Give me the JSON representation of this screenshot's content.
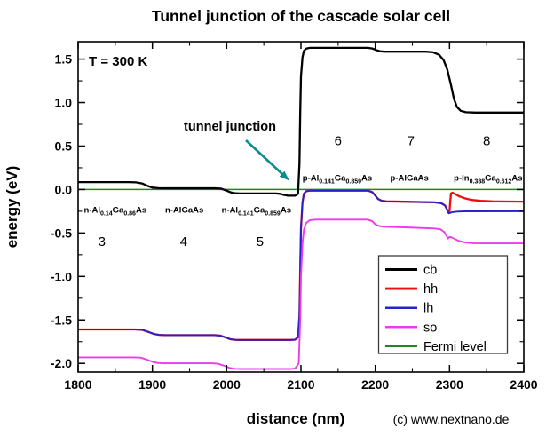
{
  "chart_data": {
    "type": "line",
    "title": "Tunnel junction of the cascade solar cell",
    "xlabel": "distance (nm)",
    "ylabel": "energy (eV)",
    "xlim": [
      1800,
      2400
    ],
    "ylim": [
      -2.1,
      1.7
    ],
    "x_tick_labels": [
      "1800",
      "1900",
      "2000",
      "2100",
      "2200",
      "2300",
      "2400"
    ],
    "x_minor_step": 50,
    "y_tick_labels": [
      "1.5",
      "1.0",
      "0.5",
      "0.0",
      "-0.5",
      "-1.0",
      "-1.5",
      "-2.0"
    ],
    "y_minor_step": 0.25,
    "grid": false,
    "legend_position": "lower right",
    "series": [
      {
        "name": "cb",
        "color": "#000000",
        "width": 2.3,
        "points": [
          [
            1800,
            0.085
          ],
          [
            1868,
            0.085
          ],
          [
            1878,
            0.082
          ],
          [
            1886,
            0.07
          ],
          [
            1894,
            0.04
          ],
          [
            1900,
            0.022
          ],
          [
            1908,
            0.016
          ],
          [
            1916,
            0.015
          ],
          [
            1984,
            0.015
          ],
          [
            1992,
            0.01
          ],
          [
            1999,
            -0.01
          ],
          [
            2006,
            -0.035
          ],
          [
            2012,
            -0.044
          ],
          [
            2018,
            -0.046
          ],
          [
            2066,
            -0.046
          ],
          [
            2072,
            -0.05
          ],
          [
            2077,
            -0.062
          ],
          [
            2082,
            -0.07
          ],
          [
            2092,
            -0.071
          ],
          [
            2096,
            -0.05
          ],
          [
            2098,
            0.3
          ],
          [
            2099,
            0.9
          ],
          [
            2100,
            1.3
          ],
          [
            2102,
            1.52
          ],
          [
            2104,
            1.595
          ],
          [
            2107,
            1.62
          ],
          [
            2112,
            1.63
          ],
          [
            2190,
            1.63
          ],
          [
            2196,
            1.622
          ],
          [
            2201,
            1.605
          ],
          [
            2207,
            1.59
          ],
          [
            2213,
            1.586
          ],
          [
            2268,
            1.586
          ],
          [
            2278,
            1.578
          ],
          [
            2286,
            1.55
          ],
          [
            2292,
            1.49
          ],
          [
            2297,
            1.38
          ],
          [
            2302,
            1.2
          ],
          [
            2306,
            1.04
          ],
          [
            2310,
            0.95
          ],
          [
            2315,
            0.905
          ],
          [
            2322,
            0.889
          ],
          [
            2335,
            0.885
          ],
          [
            2400,
            0.885
          ]
        ]
      },
      {
        "name": "hh",
        "color": "#ed0e0e",
        "width": 2.3,
        "points": [
          [
            1800,
            -1.61
          ],
          [
            1876,
            -1.61
          ],
          [
            1886,
            -1.614
          ],
          [
            1894,
            -1.636
          ],
          [
            1902,
            -1.662
          ],
          [
            1909,
            -1.672
          ],
          [
            1916,
            -1.675
          ],
          [
            1983,
            -1.675
          ],
          [
            1991,
            -1.68
          ],
          [
            1998,
            -1.7
          ],
          [
            2005,
            -1.722
          ],
          [
            2012,
            -1.729
          ],
          [
            2018,
            -1.73
          ],
          [
            2086,
            -1.73
          ],
          [
            2092,
            -1.727
          ],
          [
            2096,
            -1.7
          ],
          [
            2098,
            -1.45
          ],
          [
            2099,
            -0.9
          ],
          [
            2100,
            -0.45
          ],
          [
            2102,
            -0.15
          ],
          [
            2104,
            -0.05
          ],
          [
            2107,
            -0.02
          ],
          [
            2112,
            -0.013
          ],
          [
            2190,
            -0.013
          ],
          [
            2196,
            -0.03
          ],
          [
            2200,
            -0.07
          ],
          [
            2204,
            -0.11
          ],
          [
            2209,
            -0.131
          ],
          [
            2215,
            -0.137
          ],
          [
            2240,
            -0.141
          ],
          [
            2280,
            -0.148
          ],
          [
            2289,
            -0.158
          ],
          [
            2294,
            -0.185
          ],
          [
            2297,
            -0.235
          ],
          [
            2299,
            -0.273
          ],
          [
            2300,
            -0.255
          ],
          [
            2301,
            -0.13
          ],
          [
            2302,
            -0.045
          ],
          [
            2304,
            -0.037
          ],
          [
            2308,
            -0.055
          ],
          [
            2313,
            -0.078
          ],
          [
            2320,
            -0.1
          ],
          [
            2330,
            -0.12
          ],
          [
            2342,
            -0.131
          ],
          [
            2358,
            -0.137
          ],
          [
            2380,
            -0.139
          ],
          [
            2400,
            -0.14
          ]
        ]
      },
      {
        "name": "lh",
        "color": "#2424c8",
        "width": 1.9,
        "points": [
          [
            1800,
            -1.61
          ],
          [
            1876,
            -1.61
          ],
          [
            1886,
            -1.614
          ],
          [
            1894,
            -1.636
          ],
          [
            1902,
            -1.662
          ],
          [
            1909,
            -1.672
          ],
          [
            1916,
            -1.675
          ],
          [
            1983,
            -1.675
          ],
          [
            1991,
            -1.68
          ],
          [
            1998,
            -1.7
          ],
          [
            2005,
            -1.722
          ],
          [
            2012,
            -1.729
          ],
          [
            2018,
            -1.73
          ],
          [
            2086,
            -1.73
          ],
          [
            2092,
            -1.727
          ],
          [
            2096,
            -1.7
          ],
          [
            2098,
            -1.45
          ],
          [
            2099,
            -0.9
          ],
          [
            2100,
            -0.45
          ],
          [
            2102,
            -0.15
          ],
          [
            2104,
            -0.05
          ],
          [
            2107,
            -0.02
          ],
          [
            2112,
            -0.013
          ],
          [
            2190,
            -0.013
          ],
          [
            2196,
            -0.03
          ],
          [
            2200,
            -0.07
          ],
          [
            2204,
            -0.11
          ],
          [
            2209,
            -0.131
          ],
          [
            2215,
            -0.137
          ],
          [
            2240,
            -0.141
          ],
          [
            2280,
            -0.148
          ],
          [
            2289,
            -0.158
          ],
          [
            2294,
            -0.185
          ],
          [
            2297,
            -0.235
          ],
          [
            2299,
            -0.273
          ],
          [
            2301,
            -0.268
          ],
          [
            2304,
            -0.26
          ],
          [
            2310,
            -0.254
          ],
          [
            2320,
            -0.251
          ],
          [
            2400,
            -0.25
          ]
        ]
      },
      {
        "name": "so",
        "color": "#ea3cea",
        "width": 1.9,
        "points": [
          [
            1800,
            -1.93
          ],
          [
            1874,
            -1.93
          ],
          [
            1884,
            -1.934
          ],
          [
            1892,
            -1.955
          ],
          [
            1900,
            -1.982
          ],
          [
            1907,
            -1.995
          ],
          [
            1914,
            -1.999
          ],
          [
            1980,
            -1.999
          ],
          [
            1988,
            -2.004
          ],
          [
            1996,
            -2.025
          ],
          [
            2004,
            -2.052
          ],
          [
            2011,
            -2.062
          ],
          [
            2018,
            -2.064
          ],
          [
            2086,
            -2.064
          ],
          [
            2092,
            -2.06
          ],
          [
            2097,
            -2.0
          ],
          [
            2099,
            -1.5
          ],
          [
            2100,
            -1.0
          ],
          [
            2102,
            -0.62
          ],
          [
            2104,
            -0.46
          ],
          [
            2107,
            -0.385
          ],
          [
            2112,
            -0.352
          ],
          [
            2120,
            -0.346
          ],
          [
            2190,
            -0.346
          ],
          [
            2196,
            -0.365
          ],
          [
            2200,
            -0.4
          ],
          [
            2205,
            -0.42
          ],
          [
            2211,
            -0.428
          ],
          [
            2240,
            -0.435
          ],
          [
            2280,
            -0.448
          ],
          [
            2288,
            -0.458
          ],
          [
            2293,
            -0.49
          ],
          [
            2296,
            -0.535
          ],
          [
            2298,
            -0.565
          ],
          [
            2300,
            -0.545
          ],
          [
            2302,
            -0.548
          ],
          [
            2306,
            -0.565
          ],
          [
            2312,
            -0.59
          ],
          [
            2320,
            -0.608
          ],
          [
            2332,
            -0.618
          ],
          [
            2350,
            -0.62
          ],
          [
            2400,
            -0.62
          ]
        ]
      },
      {
        "name": "Fermi level",
        "color": "#1b8a1b",
        "width": 1.5,
        "points": [
          [
            1800,
            0.0
          ],
          [
            2400,
            0.0
          ]
        ]
      }
    ],
    "annotations": {
      "temperature": {
        "text": "T = 300 K"
      },
      "tunnel_junction": {
        "text": "tunnel junction",
        "color": "#0e8c8c",
        "target_nm": 2100
      },
      "region_numbers": {
        "color": "#35e035",
        "items": [
          {
            "label": "3",
            "x": 1832,
            "y": -0.6
          },
          {
            "label": "4",
            "x": 1942,
            "y": -0.6
          },
          {
            "label": "5",
            "x": 2045,
            "y": -0.6
          },
          {
            "label": "6",
            "x": 2150,
            "y": 0.56
          },
          {
            "label": "7",
            "x": 2248,
            "y": 0.56
          },
          {
            "label": "8",
            "x": 2350,
            "y": 0.56
          }
        ]
      },
      "material_labels": [
        {
          "x": 1850,
          "y": -0.23,
          "parts": [
            {
              "t": "n-Al"
            },
            {
              "t": "0.14",
              "sub": true
            },
            {
              "t": "Ga"
            },
            {
              "t": "0.86",
              "sub": true
            },
            {
              "t": "As"
            }
          ]
        },
        {
          "x": 1943,
          "y": -0.23,
          "parts": [
            {
              "t": "n-AlGaAs"
            }
          ]
        },
        {
          "x": 2040,
          "y": -0.23,
          "parts": [
            {
              "t": "n-Al"
            },
            {
              "t": "0.141",
              "sub": true
            },
            {
              "t": "Ga"
            },
            {
              "t": "0.859",
              "sub": true
            },
            {
              "t": "As"
            }
          ]
        },
        {
          "x": 2149,
          "y": 0.135,
          "parts": [
            {
              "t": "p-Al"
            },
            {
              "t": "0.141",
              "sub": true
            },
            {
              "t": "Ga"
            },
            {
              "t": "0.859",
              "sub": true
            },
            {
              "t": "As"
            }
          ]
        },
        {
          "x": 2246,
          "y": 0.135,
          "parts": [
            {
              "t": "p-AlGaAs"
            }
          ]
        },
        {
          "x": 2352,
          "y": 0.135,
          "parts": [
            {
              "t": "p-In"
            },
            {
              "t": "0.388",
              "sub": true
            },
            {
              "t": "Ga"
            },
            {
              "t": "0.612",
              "sub": true
            },
            {
              "t": "As"
            }
          ]
        }
      ]
    },
    "watermark": {
      "text": "(c) www.nextnano.de",
      "color": "#21a2a2"
    },
    "legend": {
      "entries": [
        {
          "label": "cb",
          "color": "#000000"
        },
        {
          "label": "hh",
          "color": "#ed0e0e"
        },
        {
          "label": "lh",
          "color": "#2424c8"
        },
        {
          "label": "so",
          "color": "#ea3cea"
        },
        {
          "label": "Fermi level",
          "color": "#1b8a1b"
        }
      ]
    }
  }
}
